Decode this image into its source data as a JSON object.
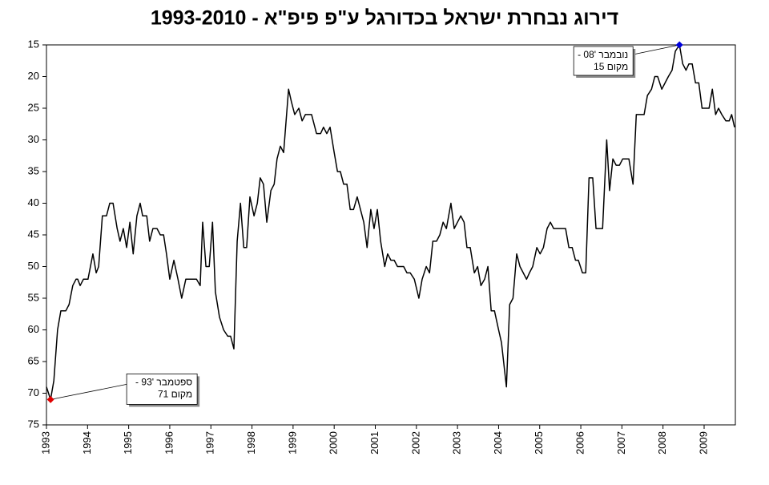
{
  "chart_data": {
    "type": "line",
    "title": "דירוג נבחרת ישראל בכדורגל ע\"פ פיפ\"א - 1993-2010",
    "color": "#000000",
    "x": [
      1993.0,
      1993.1,
      1993.18,
      1993.27,
      1993.35,
      1993.47,
      1993.55,
      1993.64,
      1993.72,
      1993.76,
      1993.82,
      1993.9,
      1994.01,
      1994.13,
      1994.21,
      1994.27,
      1994.36,
      1994.46,
      1994.54,
      1994.62,
      1994.72,
      1994.79,
      1994.87,
      1994.95,
      1995.03,
      1995.11,
      1995.2,
      1995.28,
      1995.34,
      1995.44,
      1995.51,
      1995.59,
      1995.69,
      1995.77,
      1995.85,
      1995.92,
      1996.0,
      1996.1,
      1996.2,
      1996.29,
      1996.39,
      1996.55,
      1996.65,
      1996.74,
      1996.8,
      1996.88,
      1996.96,
      1997.04,
      1997.11,
      1997.21,
      1997.31,
      1997.41,
      1997.48,
      1997.56,
      1997.64,
      1997.72,
      1997.8,
      1997.87,
      1997.95,
      1998.05,
      1998.13,
      1998.2,
      1998.28,
      1998.36,
      1998.46,
      1998.54,
      1998.61,
      1998.69,
      1998.77,
      1998.89,
      1998.96,
      1999.04,
      1999.14,
      1999.22,
      1999.3,
      1999.45,
      1999.57,
      1999.67,
      1999.74,
      1999.82,
      1999.9,
      2000.0,
      2000.08,
      2000.15,
      2000.23,
      2000.31,
      2000.39,
      2000.47,
      2000.56,
      2000.64,
      2000.72,
      2000.8,
      2000.89,
      2000.97,
      2001.05,
      2001.13,
      2001.23,
      2001.3,
      2001.38,
      2001.46,
      2001.54,
      2001.69,
      2001.77,
      2001.85,
      2001.95,
      2002.06,
      2002.14,
      2002.24,
      2002.32,
      2002.4,
      2002.49,
      2002.57,
      2002.65,
      2002.73,
      2002.84,
      2002.92,
      2003.0,
      2003.08,
      2003.16,
      2003.23,
      2003.31,
      2003.41,
      2003.49,
      2003.57,
      2003.66,
      2003.74,
      2003.82,
      2003.9,
      2004.0,
      2004.07,
      2004.19,
      2004.27,
      2004.35,
      2004.44,
      2004.52,
      2004.6,
      2004.68,
      2004.75,
      2004.83,
      2004.93,
      2005.01,
      2005.09,
      2005.18,
      2005.26,
      2005.34,
      2005.63,
      2005.71,
      2005.79,
      2005.87,
      2005.94,
      2006.04,
      2006.12,
      2006.2,
      2006.29,
      2006.37,
      2006.53,
      2006.63,
      2006.7,
      2006.78,
      2006.86,
      2006.94,
      2007.02,
      2007.17,
      2007.27,
      2007.35,
      2007.54,
      2007.62,
      2007.72,
      2007.8,
      2007.87,
      2007.97,
      2008.05,
      2008.13,
      2008.22,
      2008.3,
      2008.4,
      2008.48,
      2008.56,
      2008.63,
      2008.71,
      2008.79,
      2008.87,
      2008.95,
      2009.02,
      2009.12,
      2009.2,
      2009.28,
      2009.35,
      2009.43,
      2009.53,
      2009.61,
      2009.67,
      2009.74
    ],
    "values": [
      69,
      71,
      68,
      60,
      57,
      57,
      56,
      53,
      52,
      52,
      53,
      52,
      52,
      48,
      51,
      50,
      42,
      42,
      40,
      40,
      44,
      46,
      44,
      47,
      43,
      48,
      42,
      40,
      42,
      42,
      46,
      44,
      44,
      45,
      45,
      48,
      52,
      49,
      52,
      55,
      52,
      52,
      52,
      53,
      43,
      50,
      50,
      43,
      54,
      58,
      60,
      61,
      61,
      63,
      46,
      40,
      47,
      47,
      39,
      42,
      40,
      36,
      37,
      43,
      38,
      37,
      33,
      31,
      32,
      22,
      24,
      26,
      25,
      27,
      26,
      26,
      29,
      29,
      28,
      29,
      28,
      32,
      35,
      35,
      37,
      37,
      41,
      41,
      39,
      41,
      43,
      47,
      41,
      44,
      41,
      46,
      50,
      48,
      49,
      49,
      50,
      50,
      51,
      51,
      52,
      55,
      52,
      50,
      51,
      46,
      46,
      45,
      43,
      44,
      40,
      44,
      43,
      42,
      43,
      47,
      47,
      51,
      50,
      53,
      52,
      50,
      57,
      57,
      60,
      62,
      69,
      56,
      55,
      48,
      50,
      51,
      52,
      51,
      50,
      47,
      48,
      47,
      44,
      43,
      44,
      44,
      47,
      47,
      49,
      49,
      51,
      51,
      36,
      36,
      44,
      44,
      30,
      38,
      33,
      34,
      34,
      33,
      33,
      37,
      26,
      26,
      23,
      22,
      20,
      20,
      22,
      21,
      20,
      19,
      16,
      15,
      18,
      19,
      18,
      18,
      21,
      21,
      25,
      25,
      25,
      22,
      26,
      25,
      26,
      27,
      27,
      26,
      28
    ],
    "xlim": [
      1993,
      2009.76
    ],
    "xticks": [
      1993,
      1994,
      1995,
      1996,
      1997,
      1998,
      1999,
      2000,
      2001,
      2002,
      2003,
      2004,
      2005,
      2006,
      2007,
      2008,
      2009
    ],
    "ylim": [
      75,
      15
    ],
    "yticks": [
      15,
      20,
      25,
      30,
      35,
      40,
      45,
      50,
      55,
      60,
      65,
      70,
      75
    ],
    "annotations": [
      {
        "x": 1993.1,
        "y": 71,
        "color": "#e00000",
        "lines": [
          "ספטמבר '93 -",
          "מקום 71"
        ]
      },
      {
        "x": 2008.4,
        "y": 15,
        "color": "#0000dd",
        "lines": [
          "נובמבר '08 -",
          "מקום 15"
        ]
      }
    ]
  }
}
